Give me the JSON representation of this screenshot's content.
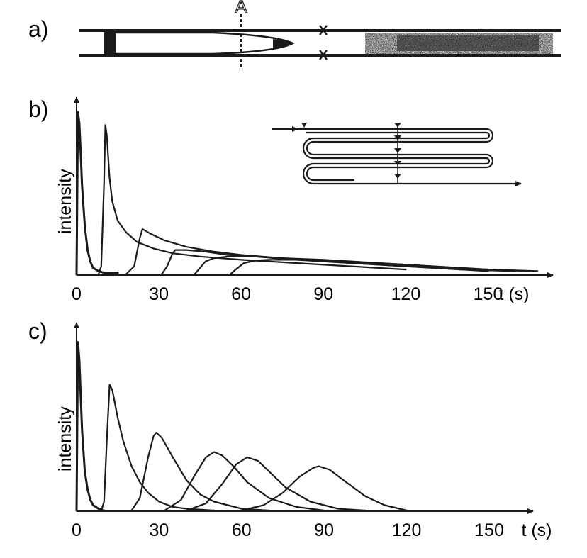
{
  "panel_a": {
    "label": "a)",
    "marker_label": "A"
  },
  "chart_data": [
    {
      "type": "line",
      "panel_label": "b)",
      "xlabel": "t (s)",
      "ylabel": "intensity",
      "x_ticks": [
        0,
        30,
        60,
        90,
        120,
        150
      ],
      "xlim": [
        0,
        170
      ],
      "ylim": [
        0,
        1
      ],
      "grid": false,
      "legend": "none",
      "inset": "serpentine channel schematic with detection points marked by triangles",
      "series": [
        {
          "x": [
            0,
            0.5,
            1,
            1.5,
            2,
            3,
            4,
            5,
            6,
            8,
            10,
            15
          ],
          "values": [
            0,
            1.0,
            0.93,
            0.75,
            0.55,
            0.3,
            0.15,
            0.08,
            0.04,
            0.02,
            0.01,
            0.01
          ]
        },
        {
          "x": [
            8,
            9,
            10,
            10.5,
            11,
            12,
            13,
            15,
            18,
            22,
            28,
            35,
            45,
            60,
            80,
            100,
            120
          ],
          "values": [
            0,
            0.05,
            0.55,
            0.92,
            0.86,
            0.6,
            0.45,
            0.33,
            0.26,
            0.2,
            0.16,
            0.13,
            0.11,
            0.09,
            0.07,
            0.05,
            0.03
          ]
        },
        {
          "x": [
            18,
            21,
            23,
            24,
            27,
            32,
            40,
            50,
            60,
            75,
            90,
            110,
            130,
            150
          ],
          "values": [
            0,
            0.05,
            0.22,
            0.28,
            0.25,
            0.21,
            0.17,
            0.14,
            0.12,
            0.1,
            0.08,
            0.06,
            0.04,
            0.02
          ]
        },
        {
          "x": [
            31,
            33,
            35,
            36,
            40,
            47,
            55,
            65,
            80,
            100,
            120,
            140,
            160
          ],
          "values": [
            0,
            0.05,
            0.13,
            0.15,
            0.15,
            0.14,
            0.12,
            0.11,
            0.09,
            0.07,
            0.05,
            0.03,
            0.02
          ]
        },
        {
          "x": [
            43,
            45,
            47,
            50,
            55,
            65,
            75,
            90,
            110,
            130,
            150,
            165
          ],
          "values": [
            0,
            0.04,
            0.08,
            0.1,
            0.11,
            0.11,
            0.1,
            0.09,
            0.07,
            0.05,
            0.03,
            0.02
          ]
        },
        {
          "x": [
            56,
            58,
            61,
            65,
            70,
            80,
            95,
            110,
            130,
            150,
            168
          ],
          "values": [
            0,
            0.03,
            0.07,
            0.085,
            0.09,
            0.09,
            0.08,
            0.07,
            0.05,
            0.03,
            0.02
          ]
        }
      ]
    },
    {
      "type": "line",
      "panel_label": "c)",
      "xlabel": "t (s)",
      "ylabel": "intensity",
      "x_ticks": [
        0,
        30,
        60,
        90,
        120,
        150
      ],
      "xlim": [
        0,
        170
      ],
      "ylim": [
        0,
        1
      ],
      "grid": false,
      "legend": "none",
      "series": [
        {
          "x": [
            0,
            0.5,
            1,
            1.5,
            2,
            3,
            4,
            5,
            6,
            8,
            10
          ],
          "values": [
            0,
            0.95,
            0.85,
            0.65,
            0.45,
            0.22,
            0.12,
            0.06,
            0.03,
            0.01,
            0
          ]
        },
        {
          "x": [
            9,
            10,
            11,
            12,
            13,
            15,
            17,
            20,
            23,
            26,
            30,
            35,
            40,
            50
          ],
          "values": [
            0,
            0.05,
            0.4,
            0.71,
            0.68,
            0.52,
            0.39,
            0.25,
            0.16,
            0.1,
            0.05,
            0.02,
            0.01,
            0
          ]
        },
        {
          "x": [
            20,
            23,
            26,
            28,
            29,
            31,
            35,
            40,
            45,
            50,
            60,
            70
          ],
          "values": [
            0,
            0.07,
            0.3,
            0.42,
            0.44,
            0.41,
            0.3,
            0.17,
            0.09,
            0.05,
            0.01,
            0
          ]
        },
        {
          "x": [
            32,
            38,
            43,
            47,
            50,
            53,
            57,
            62,
            70,
            80,
            90
          ],
          "values": [
            0,
            0.06,
            0.2,
            0.3,
            0.33,
            0.31,
            0.25,
            0.16,
            0.07,
            0.02,
            0
          ]
        },
        {
          "x": [
            40,
            47,
            53,
            58,
            62,
            66,
            70,
            76,
            85,
            95,
            105
          ],
          "values": [
            0,
            0.04,
            0.15,
            0.26,
            0.3,
            0.28,
            0.22,
            0.13,
            0.05,
            0.01,
            0
          ]
        },
        {
          "x": [
            60,
            68,
            75,
            81,
            86,
            88,
            92,
            98,
            105,
            112,
            120
          ],
          "values": [
            0,
            0.03,
            0.1,
            0.19,
            0.24,
            0.25,
            0.23,
            0.16,
            0.08,
            0.03,
            0
          ]
        }
      ]
    }
  ]
}
